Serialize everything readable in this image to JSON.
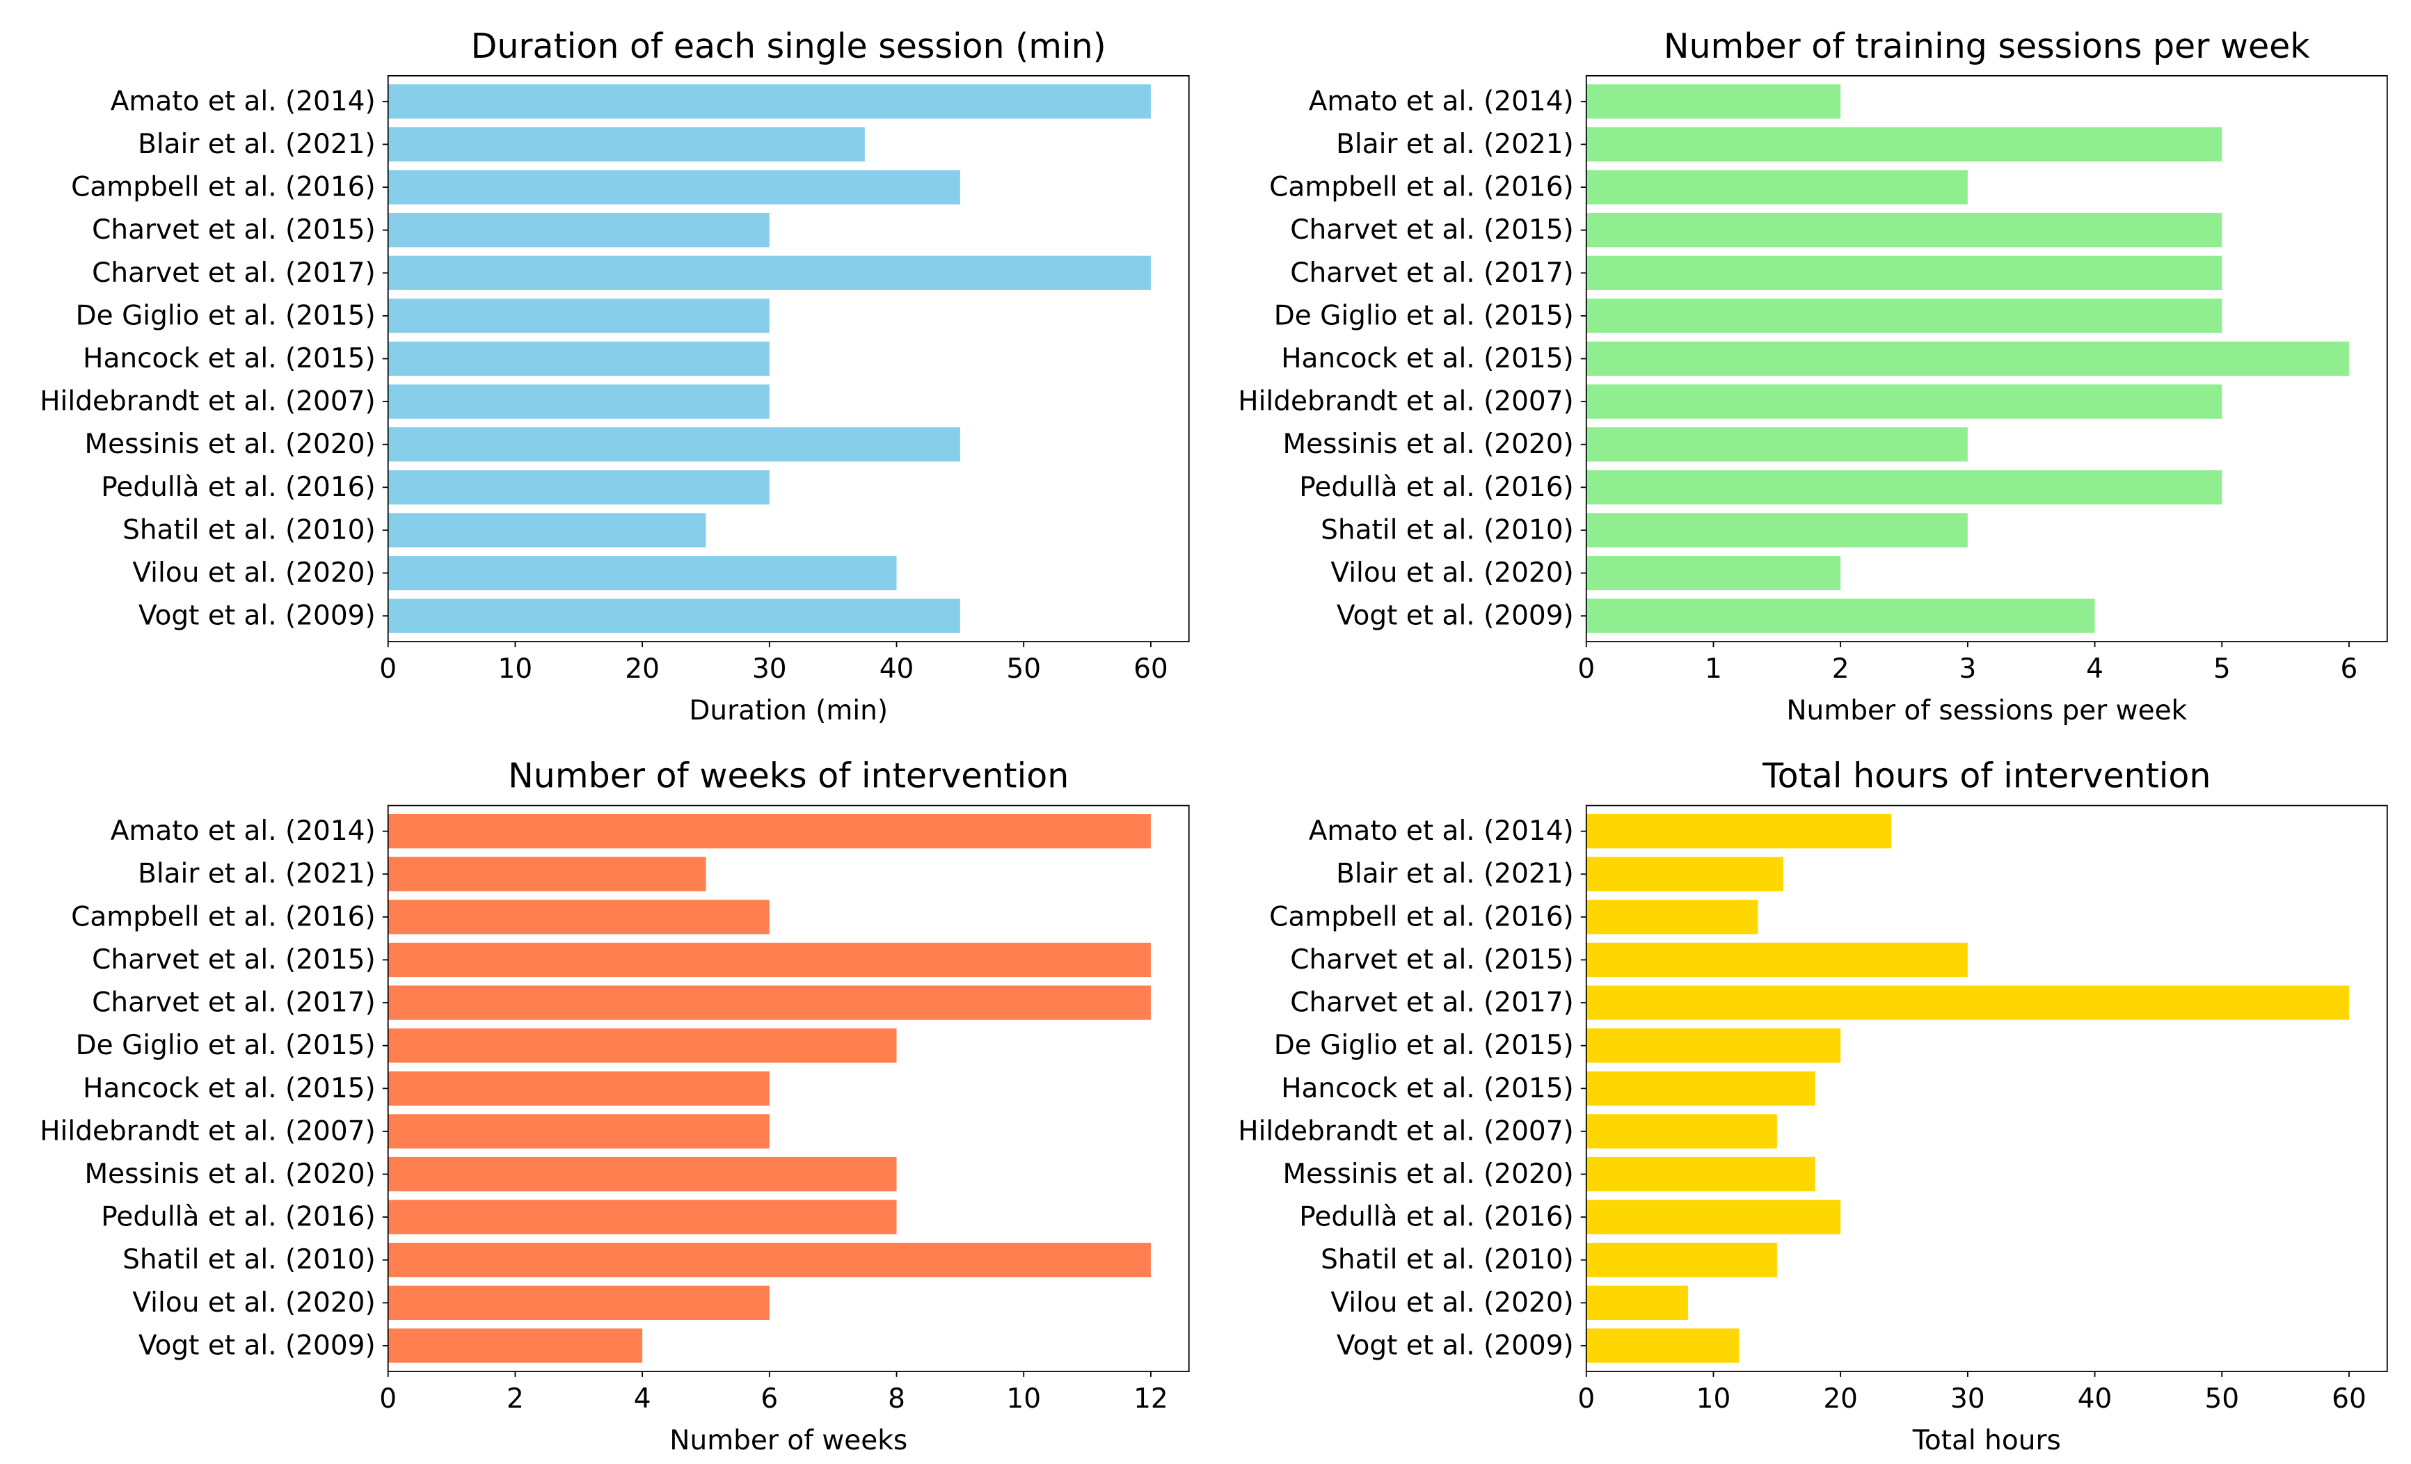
{
  "chart_data": [
    {
      "type": "bar",
      "orientation": "horizontal",
      "title": "Duration of each single session (min)",
      "xlabel": "Duration (min)",
      "ylabel": "",
      "color": "#87ceeb",
      "categories": [
        "Amato et al. (2014)",
        "Blair et al. (2021)",
        "Campbell et al. (2016)",
        "Charvet et al. (2015)",
        "Charvet et al. (2017)",
        "De Giglio et al. (2015)",
        "Hancock et al. (2015)",
        "Hildebrandt et al. (2007)",
        "Messinis et al. (2020)",
        "Pedullà et al. (2016)",
        "Shatil et al. (2010)",
        "Vilou et al. (2020)",
        "Vogt et al. (2009)"
      ],
      "values": [
        60,
        37.5,
        45,
        30,
        60,
        30,
        30,
        30,
        45,
        30,
        25,
        40,
        45
      ],
      "xlim": [
        0,
        63
      ],
      "xticks": [
        0,
        10,
        20,
        30,
        40,
        50,
        60
      ],
      "grid": false
    },
    {
      "type": "bar",
      "orientation": "horizontal",
      "title": "Number of training sessions per week",
      "xlabel": "Number of sessions per week",
      "ylabel": "",
      "color": "#90ee90",
      "categories": [
        "Amato et al. (2014)",
        "Blair et al. (2021)",
        "Campbell et al. (2016)",
        "Charvet et al. (2015)",
        "Charvet et al. (2017)",
        "De Giglio et al. (2015)",
        "Hancock et al. (2015)",
        "Hildebrandt et al. (2007)",
        "Messinis et al. (2020)",
        "Pedullà et al. (2016)",
        "Shatil et al. (2010)",
        "Vilou et al. (2020)",
        "Vogt et al. (2009)"
      ],
      "values": [
        2,
        5,
        3,
        5,
        5,
        5,
        6,
        5,
        3,
        5,
        3,
        2,
        4
      ],
      "xlim": [
        0,
        6.3
      ],
      "xticks": [
        0,
        1,
        2,
        3,
        4,
        5,
        6
      ],
      "grid": false
    },
    {
      "type": "bar",
      "orientation": "horizontal",
      "title": "Number of weeks of intervention",
      "xlabel": "Number of weeks",
      "ylabel": "",
      "color": "#ff7f50",
      "categories": [
        "Amato et al. (2014)",
        "Blair et al. (2021)",
        "Campbell et al. (2016)",
        "Charvet et al. (2015)",
        "Charvet et al. (2017)",
        "De Giglio et al. (2015)",
        "Hancock et al. (2015)",
        "Hildebrandt et al. (2007)",
        "Messinis et al. (2020)",
        "Pedullà et al. (2016)",
        "Shatil et al. (2010)",
        "Vilou et al. (2020)",
        "Vogt et al. (2009)"
      ],
      "values": [
        12,
        5,
        6,
        12,
        12,
        8,
        6,
        6,
        8,
        8,
        12,
        6,
        4
      ],
      "xlim": [
        0,
        12.6
      ],
      "xticks": [
        0,
        2,
        4,
        6,
        8,
        10,
        12
      ],
      "grid": false
    },
    {
      "type": "bar",
      "orientation": "horizontal",
      "title": "Total hours of intervention",
      "xlabel": "Total hours",
      "ylabel": "",
      "color": "#ffd700",
      "categories": [
        "Amato et al. (2014)",
        "Blair et al. (2021)",
        "Campbell et al. (2016)",
        "Charvet et al. (2015)",
        "Charvet et al. (2017)",
        "De Giglio et al. (2015)",
        "Hancock et al. (2015)",
        "Hildebrandt et al. (2007)",
        "Messinis et al. (2020)",
        "Pedullà et al. (2016)",
        "Shatil et al. (2010)",
        "Vilou et al. (2020)",
        "Vogt et al. (2009)"
      ],
      "values": [
        24,
        15.5,
        13.5,
        30,
        60,
        20,
        18,
        15,
        18,
        20,
        15,
        8,
        12
      ],
      "xlim": [
        0,
        63
      ],
      "xticks": [
        0,
        10,
        20,
        30,
        40,
        50,
        60
      ],
      "grid": false
    }
  ]
}
